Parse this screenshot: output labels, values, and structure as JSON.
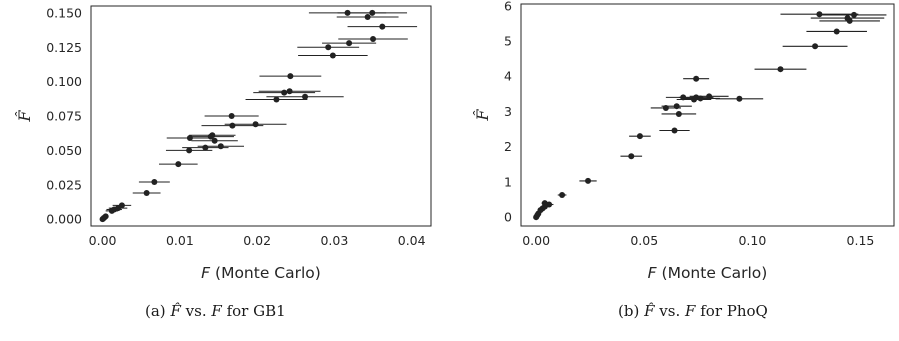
{
  "captions": [
    {
      "label": "(a)",
      "yhat": "F̂",
      "vs": "vs.",
      "x": "F",
      "rest": "for GB1"
    },
    {
      "label": "(b)",
      "yhat": "F̂",
      "vs": "vs.",
      "x": "F",
      "rest": "for PhoQ"
    }
  ],
  "chart_data": [
    {
      "type": "scatter",
      "title": "",
      "xlabel_var": "F",
      "xlabel_rest": " (Monte Carlo)",
      "ylabel": "F̂",
      "xlim": [
        -0.0015,
        0.0425
      ],
      "ylim": [
        -0.005,
        0.155
      ],
      "xticks": [
        0.0,
        0.01,
        0.02,
        0.03,
        0.04
      ],
      "xtick_labels": [
        "0.00",
        "0.01",
        "0.02",
        "0.03",
        "0.04"
      ],
      "yticks": [
        0.0,
        0.025,
        0.05,
        0.075,
        0.1,
        0.125,
        0.15
      ],
      "ytick_labels": [
        "0.000",
        "0.025",
        "0.050",
        "0.075",
        "0.100",
        "0.125",
        "0.150"
      ],
      "grid": false,
      "marker_color": "#222222",
      "points": [
        {
          "x": 0.0317,
          "y": 0.15,
          "xerr": 0.005
        },
        {
          "x": 0.0349,
          "y": 0.15,
          "xerr": 0.0045
        },
        {
          "x": 0.0343,
          "y": 0.147,
          "xerr": 0.004
        },
        {
          "x": 0.0362,
          "y": 0.14,
          "xerr": 0.0045
        },
        {
          "x": 0.035,
          "y": 0.131,
          "xerr": 0.0045
        },
        {
          "x": 0.0319,
          "y": 0.128,
          "xerr": 0.0035
        },
        {
          "x": 0.0292,
          "y": 0.125,
          "xerr": 0.004
        },
        {
          "x": 0.0298,
          "y": 0.119,
          "xerr": 0.0045
        },
        {
          "x": 0.0243,
          "y": 0.104,
          "xerr": 0.004
        },
        {
          "x": 0.0242,
          "y": 0.093,
          "xerr": 0.004
        },
        {
          "x": 0.0235,
          "y": 0.092,
          "xerr": 0.004
        },
        {
          "x": 0.0262,
          "y": 0.089,
          "xerr": 0.005
        },
        {
          "x": 0.0225,
          "y": 0.087,
          "xerr": 0.004
        },
        {
          "x": 0.0167,
          "y": 0.075,
          "xerr": 0.0035
        },
        {
          "x": 0.0198,
          "y": 0.069,
          "xerr": 0.004
        },
        {
          "x": 0.0168,
          "y": 0.068,
          "xerr": 0.004
        },
        {
          "x": 0.0142,
          "y": 0.061,
          "xerr": 0.003
        },
        {
          "x": 0.014,
          "y": 0.06,
          "xerr": 0.003
        },
        {
          "x": 0.0113,
          "y": 0.059,
          "xerr": 0.003
        },
        {
          "x": 0.0145,
          "y": 0.057,
          "xerr": 0.003
        },
        {
          "x": 0.0153,
          "y": 0.053,
          "xerr": 0.003
        },
        {
          "x": 0.0133,
          "y": 0.052,
          "xerr": 0.003
        },
        {
          "x": 0.0112,
          "y": 0.05,
          "xerr": 0.003
        },
        {
          "x": 0.0098,
          "y": 0.04,
          "xerr": 0.0025
        },
        {
          "x": 0.0067,
          "y": 0.027,
          "xerr": 0.002
        },
        {
          "x": 0.0057,
          "y": 0.019,
          "xerr": 0.0018
        },
        {
          "x": 0.0025,
          "y": 0.01,
          "xerr": 0.0012
        },
        {
          "x": 0.002,
          "y": 0.008,
          "xerr": 0.0012
        },
        {
          "x": 0.0015,
          "y": 0.007,
          "xerr": 0.001
        },
        {
          "x": 0.0012,
          "y": 0.006,
          "xerr": 0.0008
        },
        {
          "x": 0.0004,
          "y": 0.002,
          "xerr": 0.0003
        },
        {
          "x": 0.0002,
          "y": 0.001,
          "xerr": 0.0002
        },
        {
          "x": 0.0001,
          "y": 0.0005,
          "xerr": 0.0001
        },
        {
          "x": 0.0,
          "y": 0.0,
          "xerr": 0.0
        }
      ]
    },
    {
      "type": "scatter",
      "title": "",
      "xlabel_var": "F",
      "xlabel_rest": " (Monte Carlo)",
      "ylabel": "F̂",
      "xlim": [
        -0.007,
        0.1655
      ],
      "ylim": [
        -0.25,
        6.05
      ],
      "xticks": [
        0.0,
        0.05,
        0.1,
        0.15
      ],
      "xtick_labels": [
        "0.00",
        "0.05",
        "0.10",
        "0.15"
      ],
      "yticks": [
        0,
        1,
        2,
        3,
        4,
        5,
        6
      ],
      "ytick_labels": [
        "0",
        "1",
        "2",
        "3",
        "4",
        "5",
        "6"
      ],
      "grid": false,
      "marker_color": "#222222",
      "points": [
        {
          "x": 0.131,
          "y": 5.76,
          "xerr": 0.018
        },
        {
          "x": 0.147,
          "y": 5.74,
          "xerr": 0.015
        },
        {
          "x": 0.144,
          "y": 5.65,
          "xerr": 0.017
        },
        {
          "x": 0.145,
          "y": 5.57,
          "xerr": 0.014
        },
        {
          "x": 0.139,
          "y": 5.27,
          "xerr": 0.014
        },
        {
          "x": 0.129,
          "y": 4.85,
          "xerr": 0.015
        },
        {
          "x": 0.113,
          "y": 4.2,
          "xerr": 0.012
        },
        {
          "x": 0.074,
          "y": 3.93,
          "xerr": 0.006
        },
        {
          "x": 0.08,
          "y": 3.43,
          "xerr": 0.009
        },
        {
          "x": 0.068,
          "y": 3.4,
          "xerr": 0.008
        },
        {
          "x": 0.074,
          "y": 3.4,
          "xerr": 0.008
        },
        {
          "x": 0.076,
          "y": 3.37,
          "xerr": 0.009
        },
        {
          "x": 0.094,
          "y": 3.36,
          "xerr": 0.011
        },
        {
          "x": 0.073,
          "y": 3.34,
          "xerr": 0.008
        },
        {
          "x": 0.065,
          "y": 3.15,
          "xerr": 0.007
        },
        {
          "x": 0.06,
          "y": 3.1,
          "xerr": 0.007
        },
        {
          "x": 0.066,
          "y": 2.93,
          "xerr": 0.008
        },
        {
          "x": 0.064,
          "y": 2.46,
          "xerr": 0.007
        },
        {
          "x": 0.048,
          "y": 2.3,
          "xerr": 0.005
        },
        {
          "x": 0.044,
          "y": 1.73,
          "xerr": 0.005
        },
        {
          "x": 0.024,
          "y": 1.03,
          "xerr": 0.004
        },
        {
          "x": 0.012,
          "y": 0.63,
          "xerr": 0.002
        },
        {
          "x": 0.006,
          "y": 0.36,
          "xerr": 0.002
        },
        {
          "x": 0.004,
          "y": 0.4,
          "xerr": 0.0015
        },
        {
          "x": 0.004,
          "y": 0.3,
          "xerr": 0.0015
        },
        {
          "x": 0.003,
          "y": 0.25,
          "xerr": 0.001
        },
        {
          "x": 0.002,
          "y": 0.2,
          "xerr": 0.001
        },
        {
          "x": 0.001,
          "y": 0.1,
          "xerr": 0.0005
        },
        {
          "x": 0.0005,
          "y": 0.05,
          "xerr": 0.0003
        },
        {
          "x": 0.0,
          "y": 0.0,
          "xerr": 0.0
        }
      ]
    }
  ]
}
